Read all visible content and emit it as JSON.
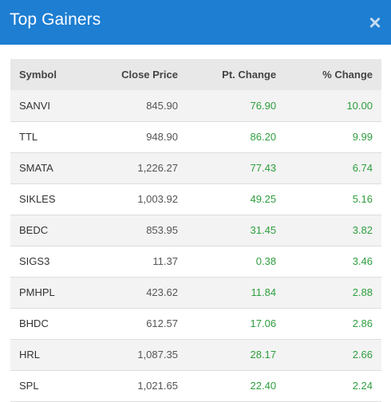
{
  "modal": {
    "title": "Top Gainers",
    "close_label": "×"
  },
  "table": {
    "headers": {
      "symbol": "Symbol",
      "close_price": "Close Price",
      "pt_change": "Pt. Change",
      "pct_change": "% Change"
    },
    "rows": [
      {
        "symbol": "SANVI",
        "close_price": "845.90",
        "pt_change": "76.90",
        "pct_change": "10.00"
      },
      {
        "symbol": "TTL",
        "close_price": "948.90",
        "pt_change": "86.20",
        "pct_change": "9.99"
      },
      {
        "symbol": "SMATA",
        "close_price": "1,226.27",
        "pt_change": "77.43",
        "pct_change": "6.74"
      },
      {
        "symbol": "SIKLES",
        "close_price": "1,003.92",
        "pt_change": "49.25",
        "pct_change": "5.16"
      },
      {
        "symbol": "BEDC",
        "close_price": "853.95",
        "pt_change": "31.45",
        "pct_change": "3.82"
      },
      {
        "symbol": "SIGS3",
        "close_price": "11.37",
        "pt_change": "0.38",
        "pct_change": "3.46"
      },
      {
        "symbol": "PMHPL",
        "close_price": "423.62",
        "pt_change": "11.84",
        "pct_change": "2.88"
      },
      {
        "symbol": "BHDC",
        "close_price": "612.57",
        "pt_change": "17.06",
        "pct_change": "2.86"
      },
      {
        "symbol": "HRL",
        "close_price": "1,087.35",
        "pt_change": "28.17",
        "pct_change": "2.66"
      },
      {
        "symbol": "SPL",
        "close_price": "1,021.65",
        "pt_change": "22.40",
        "pct_change": "2.24"
      }
    ]
  },
  "colors": {
    "header_bg": "#1d7ed2",
    "gain": "#2e9e3e"
  }
}
